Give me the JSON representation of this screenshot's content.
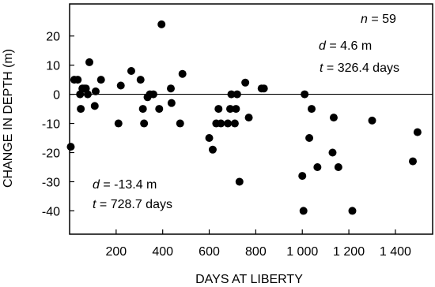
{
  "chart_data": {
    "type": "scatter",
    "xlabel": "DAYS AT LIBERTY",
    "ylabel": "CHANGE IN DEPTH (m)",
    "xlim": [
      0,
      1560
    ],
    "ylim": [
      -48,
      31
    ],
    "x_ticks": [
      200,
      400,
      600,
      800,
      1000,
      1200,
      1400
    ],
    "x_tick_labels": [
      "200",
      "400",
      "600",
      "800",
      "1 000",
      "1 200",
      "1 400"
    ],
    "y_ticks": [
      20,
      10,
      0,
      -10,
      -20,
      -30,
      -40
    ],
    "y_tick_labels": [
      "20",
      "10",
      "0",
      "-10",
      "-20",
      "-30",
      "-40"
    ],
    "reference_line_y": 0,
    "grid": false,
    "annotations": {
      "n": {
        "var": "n",
        "text": " = 59"
      },
      "d_upper": {
        "var": "d",
        "text": " = 4.6 m"
      },
      "t_upper": {
        "var": "t",
        "text": " = 326.4 days"
      },
      "d_lower": {
        "var": "d",
        "text": " = -13.4 m"
      },
      "t_lower": {
        "var": "t",
        "text": " = 728.7 days"
      }
    },
    "points": [
      {
        "x": 5,
        "y": -18
      },
      {
        "x": 20,
        "y": 5
      },
      {
        "x": 35,
        "y": 5
      },
      {
        "x": 45,
        "y": 0
      },
      {
        "x": 48,
        "y": -5
      },
      {
        "x": 55,
        "y": 2
      },
      {
        "x": 62,
        "y": 2
      },
      {
        "x": 70,
        "y": 2
      },
      {
        "x": 78,
        "y": 0
      },
      {
        "x": 85,
        "y": 11
      },
      {
        "x": 108,
        "y": -4
      },
      {
        "x": 112,
        "y": 1
      },
      {
        "x": 135,
        "y": 5
      },
      {
        "x": 210,
        "y": -10
      },
      {
        "x": 220,
        "y": 3
      },
      {
        "x": 265,
        "y": 8
      },
      {
        "x": 305,
        "y": 5
      },
      {
        "x": 315,
        "y": -5
      },
      {
        "x": 320,
        "y": -10
      },
      {
        "x": 335,
        "y": -1
      },
      {
        "x": 345,
        "y": 0
      },
      {
        "x": 360,
        "y": 0
      },
      {
        "x": 385,
        "y": -5
      },
      {
        "x": 395,
        "y": 24
      },
      {
        "x": 435,
        "y": 2
      },
      {
        "x": 438,
        "y": -3
      },
      {
        "x": 475,
        "y": -10
      },
      {
        "x": 485,
        "y": 7
      },
      {
        "x": 600,
        "y": -15
      },
      {
        "x": 615,
        "y": -19
      },
      {
        "x": 630,
        "y": -10
      },
      {
        "x": 640,
        "y": -5
      },
      {
        "x": 650,
        "y": -10
      },
      {
        "x": 680,
        "y": -10
      },
      {
        "x": 690,
        "y": -5
      },
      {
        "x": 695,
        "y": 0
      },
      {
        "x": 710,
        "y": -10
      },
      {
        "x": 715,
        "y": -5
      },
      {
        "x": 720,
        "y": 0
      },
      {
        "x": 730,
        "y": -30
      },
      {
        "x": 755,
        "y": 4
      },
      {
        "x": 770,
        "y": -8
      },
      {
        "x": 825,
        "y": 2
      },
      {
        "x": 835,
        "y": 2
      },
      {
        "x": 1000,
        "y": -28
      },
      {
        "x": 1005,
        "y": -40
      },
      {
        "x": 1010,
        "y": 0
      },
      {
        "x": 1030,
        "y": -15
      },
      {
        "x": 1040,
        "y": -5
      },
      {
        "x": 1065,
        "y": -25
      },
      {
        "x": 1130,
        "y": -20
      },
      {
        "x": 1135,
        "y": -8
      },
      {
        "x": 1155,
        "y": -25
      },
      {
        "x": 1215,
        "y": -40
      },
      {
        "x": 1300,
        "y": -9
      },
      {
        "x": 1475,
        "y": -23
      },
      {
        "x": 1495,
        "y": -13
      }
    ]
  }
}
